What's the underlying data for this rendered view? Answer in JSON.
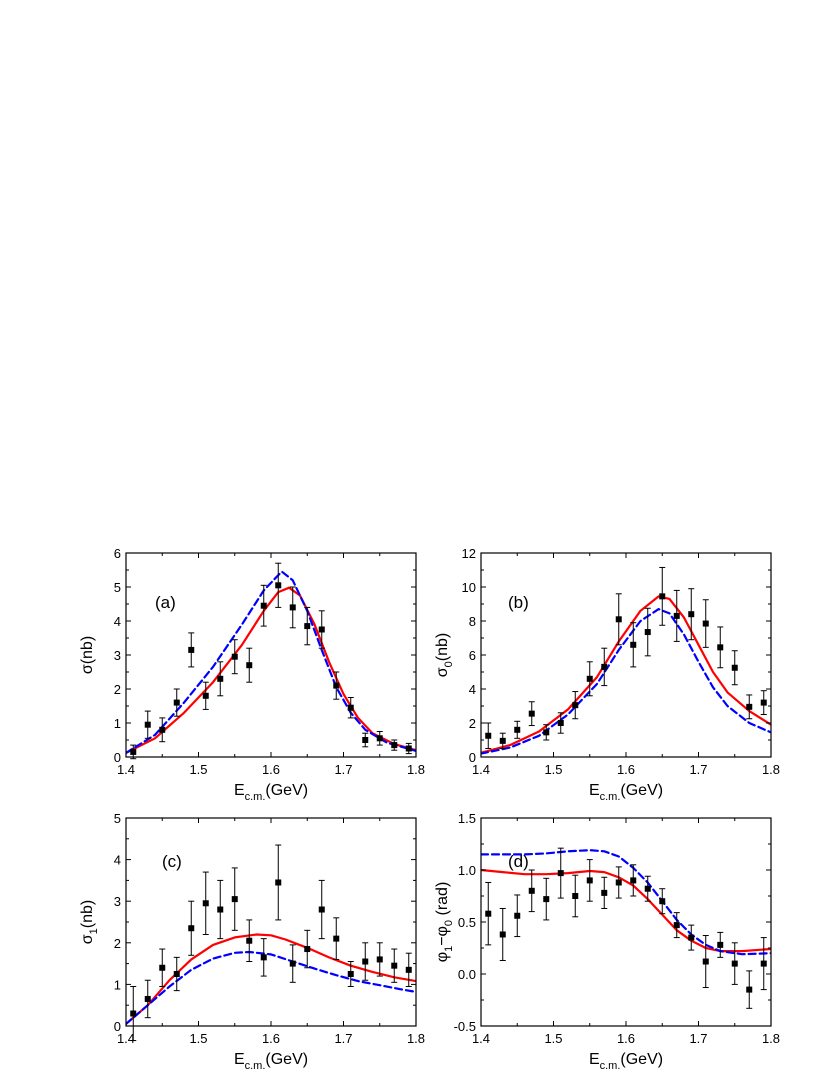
{
  "chart_data": [
    {
      "panel": "(a)",
      "type": "scatter",
      "xlabel": "E",
      "xlabel_sub": "c.m.",
      "xlabel_unit": "(GeV)",
      "ylabel": "σ(nb)",
      "xlim": [
        1.4,
        1.8
      ],
      "ylim": [
        0,
        6
      ],
      "xticks": [
        1.4,
        1.5,
        1.6,
        1.7,
        1.8
      ],
      "yticks": [
        0,
        1,
        2,
        3,
        4,
        5,
        6
      ],
      "tick_decimals": {
        "x": 1,
        "y": 0
      },
      "grid": false,
      "data_points": [
        {
          "x": 1.41,
          "y": 0.15,
          "err": 0.2
        },
        {
          "x": 1.43,
          "y": 0.95,
          "err": 0.4
        },
        {
          "x": 1.45,
          "y": 0.8,
          "err": 0.35
        },
        {
          "x": 1.47,
          "y": 1.6,
          "err": 0.4
        },
        {
          "x": 1.49,
          "y": 3.15,
          "err": 0.5
        },
        {
          "x": 1.51,
          "y": 1.8,
          "err": 0.4
        },
        {
          "x": 1.53,
          "y": 2.3,
          "err": 0.5
        },
        {
          "x": 1.55,
          "y": 2.95,
          "err": 0.5
        },
        {
          "x": 1.57,
          "y": 2.7,
          "err": 0.5
        },
        {
          "x": 1.59,
          "y": 4.45,
          "err": 0.6
        },
        {
          "x": 1.61,
          "y": 5.05,
          "err": 0.65
        },
        {
          "x": 1.63,
          "y": 4.4,
          "err": 0.6
        },
        {
          "x": 1.65,
          "y": 3.85,
          "err": 0.55
        },
        {
          "x": 1.67,
          "y": 3.75,
          "err": 0.55
        },
        {
          "x": 1.69,
          "y": 2.1,
          "err": 0.4
        },
        {
          "x": 1.71,
          "y": 1.45,
          "err": 0.3
        },
        {
          "x": 1.73,
          "y": 0.5,
          "err": 0.2
        },
        {
          "x": 1.75,
          "y": 0.55,
          "err": 0.2
        },
        {
          "x": 1.77,
          "y": 0.35,
          "err": 0.15
        },
        {
          "x": 1.79,
          "y": 0.25,
          "err": 0.15
        }
      ],
      "curves": [
        {
          "style": "solid",
          "color": "#ff0000",
          "x": [
            1.4,
            1.44,
            1.48,
            1.52,
            1.56,
            1.59,
            1.61,
            1.625,
            1.64,
            1.66,
            1.68,
            1.7,
            1.72,
            1.74,
            1.77,
            1.8
          ],
          "y": [
            0.12,
            0.55,
            1.3,
            2.2,
            3.3,
            4.3,
            4.85,
            4.98,
            4.75,
            3.9,
            2.8,
            1.85,
            1.15,
            0.7,
            0.38,
            0.2
          ]
        },
        {
          "style": "dashed",
          "color": "#0000ff",
          "x": [
            1.4,
            1.44,
            1.48,
            1.52,
            1.56,
            1.59,
            1.61,
            1.615,
            1.63,
            1.65,
            1.67,
            1.69,
            1.71,
            1.73,
            1.76,
            1.8
          ],
          "y": [
            0.12,
            0.65,
            1.6,
            2.65,
            3.9,
            4.9,
            5.35,
            5.45,
            5.2,
            4.3,
            3.15,
            2.05,
            1.3,
            0.8,
            0.42,
            0.18
          ]
        }
      ]
    },
    {
      "panel": "(b)",
      "type": "scatter",
      "xlabel": "E",
      "xlabel_sub": "c.m.",
      "xlabel_unit": "(GeV)",
      "ylabel": "σ",
      "ylabel_sub": "0",
      "ylabel_unit": "(nb)",
      "xlim": [
        1.4,
        1.8
      ],
      "ylim": [
        0,
        12
      ],
      "xticks": [
        1.4,
        1.5,
        1.6,
        1.7,
        1.8
      ],
      "yticks": [
        0,
        2,
        4,
        6,
        8,
        10,
        12
      ],
      "tick_decimals": {
        "x": 1,
        "y": 0
      },
      "grid": false,
      "data_points": [
        {
          "x": 1.41,
          "y": 1.25,
          "err": 0.75
        },
        {
          "x": 1.43,
          "y": 0.95,
          "err": 0.45
        },
        {
          "x": 1.45,
          "y": 1.6,
          "err": 0.5
        },
        {
          "x": 1.47,
          "y": 2.55,
          "err": 0.7
        },
        {
          "x": 1.49,
          "y": 1.45,
          "err": 0.45
        },
        {
          "x": 1.51,
          "y": 2.0,
          "err": 0.6
        },
        {
          "x": 1.53,
          "y": 3.05,
          "err": 0.8
        },
        {
          "x": 1.55,
          "y": 4.6,
          "err": 1.0
        },
        {
          "x": 1.57,
          "y": 5.3,
          "err": 1.1
        },
        {
          "x": 1.59,
          "y": 8.1,
          "err": 1.5
        },
        {
          "x": 1.61,
          "y": 6.6,
          "err": 1.3
        },
        {
          "x": 1.63,
          "y": 7.35,
          "err": 1.4
        },
        {
          "x": 1.65,
          "y": 9.45,
          "err": 1.7
        },
        {
          "x": 1.67,
          "y": 8.3,
          "err": 1.5
        },
        {
          "x": 1.69,
          "y": 8.4,
          "err": 1.5
        },
        {
          "x": 1.71,
          "y": 7.85,
          "err": 1.4
        },
        {
          "x": 1.73,
          "y": 6.45,
          "err": 1.2
        },
        {
          "x": 1.75,
          "y": 5.25,
          "err": 1.0
        },
        {
          "x": 1.77,
          "y": 2.95,
          "err": 0.7
        },
        {
          "x": 1.79,
          "y": 3.2,
          "err": 0.7
        }
      ],
      "curves": [
        {
          "style": "solid",
          "color": "#ff0000",
          "x": [
            1.4,
            1.44,
            1.48,
            1.52,
            1.56,
            1.59,
            1.62,
            1.645,
            1.66,
            1.68,
            1.7,
            1.72,
            1.74,
            1.77,
            1.8
          ],
          "y": [
            0.25,
            0.7,
            1.5,
            2.8,
            4.7,
            6.8,
            8.6,
            9.45,
            9.3,
            8.2,
            6.6,
            5.0,
            3.8,
            2.7,
            1.9
          ]
        },
        {
          "style": "dashed",
          "color": "#0000ff",
          "x": [
            1.4,
            1.44,
            1.48,
            1.52,
            1.56,
            1.59,
            1.62,
            1.645,
            1.66,
            1.68,
            1.7,
            1.72,
            1.74,
            1.77,
            1.8
          ],
          "y": [
            0.2,
            0.55,
            1.25,
            2.5,
            4.3,
            6.3,
            8.0,
            8.7,
            8.45,
            7.2,
            5.6,
            4.1,
            3.0,
            2.0,
            1.45
          ]
        }
      ]
    },
    {
      "panel": "(c)",
      "type": "scatter",
      "xlabel": "E",
      "xlabel_sub": "c.m.",
      "xlabel_unit": "(GeV)",
      "ylabel": "σ",
      "ylabel_sub": "1",
      "ylabel_unit": "(nb)",
      "xlim": [
        1.4,
        1.8
      ],
      "ylim": [
        0,
        5
      ],
      "xticks": [
        1.4,
        1.5,
        1.6,
        1.7,
        1.8
      ],
      "yticks": [
        0,
        1,
        2,
        3,
        4,
        5
      ],
      "tick_decimals": {
        "x": 1,
        "y": 0
      },
      "grid": false,
      "data_points": [
        {
          "x": 1.41,
          "y": 0.3,
          "err": 0.65
        },
        {
          "x": 1.43,
          "y": 0.65,
          "err": 0.45
        },
        {
          "x": 1.45,
          "y": 1.4,
          "err": 0.45
        },
        {
          "x": 1.47,
          "y": 1.25,
          "err": 0.4
        },
        {
          "x": 1.49,
          "y": 2.35,
          "err": 0.65
        },
        {
          "x": 1.51,
          "y": 2.95,
          "err": 0.75
        },
        {
          "x": 1.53,
          "y": 2.8,
          "err": 0.7
        },
        {
          "x": 1.55,
          "y": 3.05,
          "err": 0.75
        },
        {
          "x": 1.57,
          "y": 2.05,
          "err": 0.5
        },
        {
          "x": 1.59,
          "y": 1.65,
          "err": 0.45
        },
        {
          "x": 1.61,
          "y": 3.45,
          "err": 0.9
        },
        {
          "x": 1.63,
          "y": 1.5,
          "err": 0.45
        },
        {
          "x": 1.65,
          "y": 1.85,
          "err": 0.45
        },
        {
          "x": 1.67,
          "y": 2.8,
          "err": 0.7
        },
        {
          "x": 1.69,
          "y": 2.1,
          "err": 0.5
        },
        {
          "x": 1.71,
          "y": 1.25,
          "err": 0.3
        },
        {
          "x": 1.73,
          "y": 1.55,
          "err": 0.45
        },
        {
          "x": 1.75,
          "y": 1.6,
          "err": 0.4
        },
        {
          "x": 1.77,
          "y": 1.45,
          "err": 0.4
        },
        {
          "x": 1.79,
          "y": 1.35,
          "err": 0.4
        }
      ],
      "curves": [
        {
          "style": "solid",
          "color": "#ff0000",
          "x": [
            1.4,
            1.43,
            1.46,
            1.49,
            1.52,
            1.55,
            1.58,
            1.6,
            1.62,
            1.65,
            1.68,
            1.71,
            1.74,
            1.77,
            1.8
          ],
          "y": [
            0.05,
            0.5,
            1.1,
            1.6,
            1.95,
            2.13,
            2.2,
            2.18,
            2.08,
            1.88,
            1.65,
            1.45,
            1.3,
            1.17,
            1.08
          ]
        },
        {
          "style": "dashed",
          "color": "#0000ff",
          "x": [
            1.4,
            1.43,
            1.46,
            1.49,
            1.52,
            1.55,
            1.57,
            1.6,
            1.63,
            1.66,
            1.69,
            1.72,
            1.75,
            1.78,
            1.8
          ],
          "y": [
            0.05,
            0.5,
            0.95,
            1.35,
            1.62,
            1.76,
            1.78,
            1.72,
            1.55,
            1.38,
            1.22,
            1.08,
            0.98,
            0.88,
            0.82
          ]
        }
      ]
    },
    {
      "panel": "(d)",
      "type": "scatter",
      "xlabel": "E",
      "xlabel_sub": "c.m.",
      "xlabel_unit": "(GeV)",
      "ylabel": "φ",
      "ylabel_sub": "1",
      "ylabel_mid": "−φ",
      "ylabel_sub2": "0",
      "ylabel_unit": " (rad)",
      "xlim": [
        1.4,
        1.8
      ],
      "ylim": [
        -0.5,
        1.5
      ],
      "xticks": [
        1.4,
        1.5,
        1.6,
        1.7,
        1.8
      ],
      "yticks": [
        -0.5,
        0.0,
        0.5,
        1.0,
        1.5
      ],
      "tick_decimals": {
        "x": 1,
        "y": 1
      },
      "grid": false,
      "data_points": [
        {
          "x": 1.41,
          "y": 0.58,
          "err": 0.3
        },
        {
          "x": 1.43,
          "y": 0.38,
          "err": 0.25
        },
        {
          "x": 1.45,
          "y": 0.56,
          "err": 0.2
        },
        {
          "x": 1.47,
          "y": 0.8,
          "err": 0.2
        },
        {
          "x": 1.49,
          "y": 0.72,
          "err": 0.2
        },
        {
          "x": 1.51,
          "y": 0.97,
          "err": 0.24
        },
        {
          "x": 1.53,
          "y": 0.75,
          "err": 0.2
        },
        {
          "x": 1.55,
          "y": 0.9,
          "err": 0.2
        },
        {
          "x": 1.57,
          "y": 0.78,
          "err": 0.15
        },
        {
          "x": 1.59,
          "y": 0.88,
          "err": 0.15
        },
        {
          "x": 1.61,
          "y": 0.9,
          "err": 0.15
        },
        {
          "x": 1.63,
          "y": 0.82,
          "err": 0.12
        },
        {
          "x": 1.65,
          "y": 0.7,
          "err": 0.12
        },
        {
          "x": 1.67,
          "y": 0.47,
          "err": 0.12
        },
        {
          "x": 1.69,
          "y": 0.35,
          "err": 0.12
        },
        {
          "x": 1.71,
          "y": 0.12,
          "err": 0.25
        },
        {
          "x": 1.73,
          "y": 0.28,
          "err": 0.12
        },
        {
          "x": 1.75,
          "y": 0.1,
          "err": 0.2
        },
        {
          "x": 1.77,
          "y": -0.15,
          "err": 0.18
        },
        {
          "x": 1.79,
          "y": 0.1,
          "err": 0.25
        }
      ],
      "curves": [
        {
          "style": "solid",
          "color": "#ff0000",
          "x": [
            1.4,
            1.43,
            1.46,
            1.49,
            1.52,
            1.55,
            1.57,
            1.59,
            1.61,
            1.63,
            1.65,
            1.67,
            1.69,
            1.71,
            1.73,
            1.76,
            1.8
          ],
          "y": [
            1.0,
            0.98,
            0.96,
            0.96,
            0.97,
            0.99,
            0.98,
            0.93,
            0.85,
            0.72,
            0.57,
            0.42,
            0.32,
            0.25,
            0.22,
            0.22,
            0.24
          ]
        },
        {
          "style": "dashed",
          "color": "#0000ff",
          "x": [
            1.4,
            1.43,
            1.46,
            1.49,
            1.52,
            1.55,
            1.57,
            1.59,
            1.61,
            1.63,
            1.65,
            1.67,
            1.69,
            1.71,
            1.73,
            1.76,
            1.8
          ],
          "y": [
            1.15,
            1.15,
            1.15,
            1.16,
            1.18,
            1.19,
            1.18,
            1.13,
            1.02,
            0.88,
            0.7,
            0.52,
            0.38,
            0.28,
            0.22,
            0.19,
            0.2
          ]
        }
      ]
    }
  ]
}
